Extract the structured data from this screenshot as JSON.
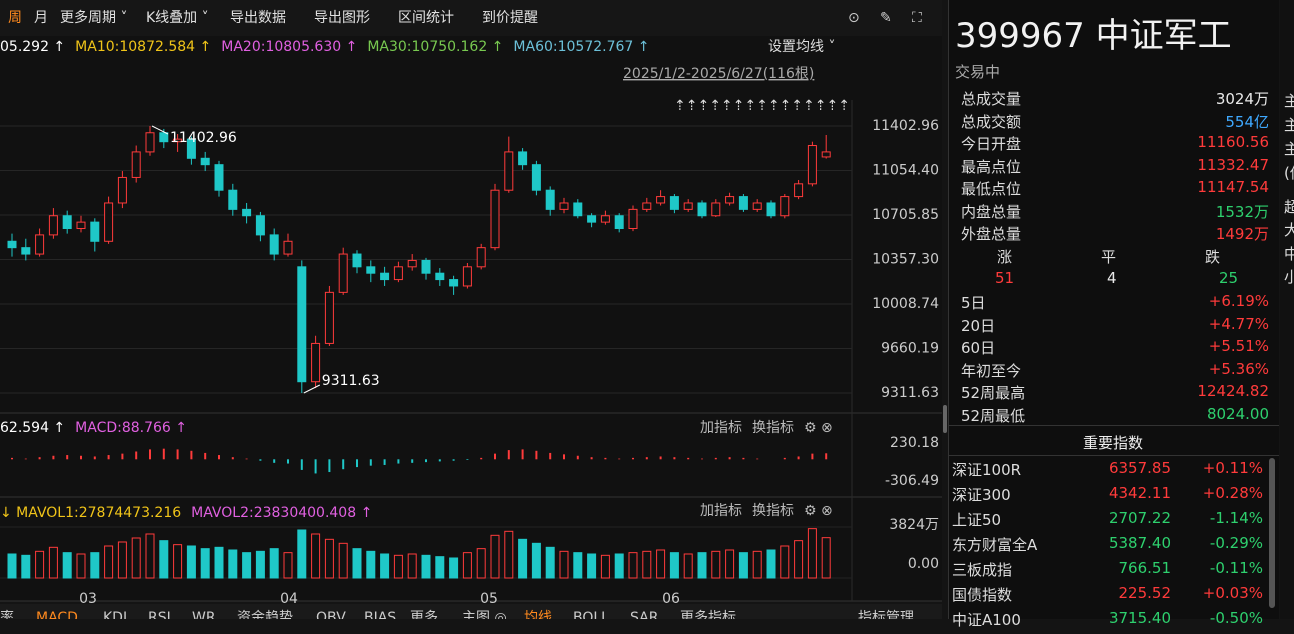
{
  "toolbar": {
    "items": [
      "周",
      "月",
      "更多周期 ˅",
      "K线叠加 ˅",
      "导出数据",
      "导出图形",
      "区间统计",
      "到价提醒"
    ],
    "active_color": "#ff8a1e",
    "icons": [
      "⊙",
      "✎",
      "⛶"
    ]
  },
  "main": {
    "legend": [
      {
        "text": "05.292 ↑",
        "color": "#ffffff"
      },
      {
        "text": "MA10:10872.584 ↑",
        "color": "#f0c419"
      },
      {
        "text": "MA20:10805.630 ↑",
        "color": "#e060e0"
      },
      {
        "text": "MA30:10750.162 ↑",
        "color": "#78c850"
      },
      {
        "text": "MA60:10572.767 ↑",
        "color": "#6cc0d8"
      }
    ],
    "settings": "设置均线 ˅",
    "range": "2025/1/2-2025/6/27(116根)",
    "arrows": "⇡⇡⇡⇡⇡⇡⇡⇡⇡⇡⇡⇡⇡⇡⇡",
    "high_label": "11402.96",
    "low_label": "9311.63",
    "ylim": [
      9311.63,
      11402.96
    ],
    "yticks": [
      11402.96,
      {
        "value": 11054.4,
        "label": "11054.40"
      },
      10705.85,
      {
        "value": 10357.3,
        "label": "10357.30"
      },
      10008.74,
      9660.19,
      9311.63
    ],
    "up_color": "#ff3b3b",
    "down_color": "#1fc8c8",
    "ohlc": [
      [
        10500,
        10560,
        10380,
        10450
      ],
      [
        10450,
        10520,
        10350,
        10400
      ],
      [
        10400,
        10600,
        10380,
        10550
      ],
      [
        10550,
        10760,
        10520,
        10700
      ],
      [
        10700,
        10740,
        10560,
        10600
      ],
      [
        10600,
        10700,
        10570,
        10650
      ],
      [
        10650,
        10680,
        10420,
        10500
      ],
      [
        10500,
        10850,
        10480,
        10800
      ],
      [
        10800,
        11050,
        10760,
        11000
      ],
      [
        11000,
        11250,
        10960,
        11200
      ],
      [
        11200,
        11402.96,
        11170,
        11350
      ],
      [
        11350,
        11380,
        11230,
        11280
      ],
      [
        11280,
        11340,
        11200,
        11300
      ],
      [
        11300,
        11320,
        11100,
        11150
      ],
      [
        11150,
        11200,
        11050,
        11100
      ],
      [
        11100,
        11130,
        10850,
        10900
      ],
      [
        10900,
        10950,
        10700,
        10750
      ],
      [
        10750,
        10800,
        10640,
        10700
      ],
      [
        10700,
        10730,
        10500,
        10550
      ],
      [
        10550,
        10600,
        10350,
        10400
      ],
      [
        10400,
        10560,
        10380,
        10500
      ],
      [
        10300,
        10350,
        9311.63,
        9400
      ],
      [
        9400,
        9760,
        9350,
        9700
      ],
      [
        9700,
        10150,
        9680,
        10100
      ],
      [
        10100,
        10450,
        10080,
        10400
      ],
      [
        10400,
        10430,
        10250,
        10300
      ],
      [
        10300,
        10350,
        10180,
        10250
      ],
      [
        10250,
        10300,
        10150,
        10200
      ],
      [
        10200,
        10340,
        10180,
        10300
      ],
      [
        10300,
        10400,
        10270,
        10350
      ],
      [
        10350,
        10370,
        10200,
        10250
      ],
      [
        10250,
        10290,
        10150,
        10200
      ],
      [
        10200,
        10230,
        10080,
        10150
      ],
      [
        10150,
        10330,
        10130,
        10300
      ],
      [
        10300,
        10480,
        10280,
        10450
      ],
      [
        10450,
        10950,
        10430,
        10900
      ],
      [
        10900,
        11320,
        10880,
        11200
      ],
      [
        11200,
        11230,
        11060,
        11100
      ],
      [
        11100,
        11130,
        10860,
        10900
      ],
      [
        10900,
        10930,
        10700,
        10750
      ],
      [
        10750,
        10840,
        10720,
        10800
      ],
      [
        10800,
        10830,
        10680,
        10700
      ],
      [
        10700,
        10720,
        10610,
        10650
      ],
      [
        10650,
        10740,
        10630,
        10700
      ],
      [
        10700,
        10720,
        10570,
        10600
      ],
      [
        10600,
        10780,
        10580,
        10750
      ],
      [
        10750,
        10840,
        10730,
        10800
      ],
      [
        10800,
        10900,
        10780,
        10850
      ],
      [
        10850,
        10870,
        10720,
        10750
      ],
      [
        10750,
        10830,
        10730,
        10800
      ],
      [
        10800,
        10820,
        10680,
        10700
      ],
      [
        10700,
        10830,
        10690,
        10800
      ],
      [
        10800,
        10880,
        10780,
        10850
      ],
      [
        10850,
        10870,
        10730,
        10750
      ],
      [
        10750,
        10830,
        10730,
        10800
      ],
      [
        10800,
        10820,
        10680,
        10700
      ],
      [
        10700,
        10870,
        10680,
        10850
      ],
      [
        10850,
        10980,
        10830,
        10950
      ],
      [
        10950,
        11280,
        10930,
        11250
      ],
      [
        11160.56,
        11332.47,
        11147.54,
        11200
      ]
    ]
  },
  "macd": {
    "legend": [
      {
        "text": "62.594 ↑",
        "color": "#ffffff"
      },
      {
        "text": "MACD:88.766 ↑",
        "color": "#e060e0"
      }
    ],
    "buttons": [
      "加指标",
      "换指标"
    ],
    "ylim": [
      -306.49,
      230.18
    ],
    "yticks": [
      230.18,
      -306.49
    ],
    "hist": [
      20,
      10,
      30,
      50,
      60,
      50,
      40,
      60,
      80,
      110,
      140,
      150,
      140,
      120,
      90,
      60,
      30,
      10,
      -20,
      -50,
      -60,
      -150,
      -200,
      -180,
      -140,
      -110,
      -90,
      -80,
      -60,
      -50,
      -40,
      -30,
      -20,
      -10,
      20,
      80,
      130,
      140,
      120,
      90,
      70,
      50,
      30,
      20,
      10,
      20,
      30,
      40,
      30,
      20,
      10,
      20,
      30,
      20,
      10,
      0,
      20,
      40,
      80,
      85
    ]
  },
  "volume": {
    "legend": [
      {
        "text": "↓ MAVOL1:27874473.216",
        "color": "#f0c419"
      },
      {
        "text": "MAVOL2:23830400.408 ↑",
        "color": "#e060e0"
      }
    ],
    "buttons": [
      "加指标",
      "换指标"
    ],
    "ylim": [
      0,
      3824
    ],
    "yticks": [
      {
        "value": 3824,
        "label": "3824万"
      },
      {
        "value": 0,
        "label": "0.00"
      }
    ],
    "values": [
      1800,
      1700,
      2000,
      2300,
      1900,
      1800,
      1900,
      2400,
      2700,
      3000,
      3300,
      2800,
      2500,
      2400,
      2200,
      2300,
      2100,
      1900,
      2000,
      2200,
      1900,
      3600,
      3300,
      2900,
      2600,
      2200,
      2000,
      1800,
      1700,
      1800,
      1700,
      1600,
      1500,
      1900,
      2200,
      3200,
      3500,
      2900,
      2600,
      2300,
      2000,
      1900,
      1800,
      1700,
      1800,
      1900,
      2000,
      2100,
      1900,
      1800,
      1900,
      2000,
      2100,
      1900,
      2000,
      2100,
      2400,
      2800,
      3700,
      3024
    ]
  },
  "months": [
    "03",
    "04",
    "05",
    "06"
  ],
  "tabs": [
    "率",
    "MACD",
    "KDJ",
    "RSI",
    "WR",
    "资金趋势",
    "OBV",
    "BIAS",
    "更多",
    "主图 ◎",
    "均线",
    "BOLL",
    "SAR",
    "更多指标",
    "指标管理"
  ],
  "quote": {
    "title": "399967 中证军工",
    "status": "交易中",
    "rows": [
      {
        "name": "总成交量",
        "value": "3024万",
        "color": "#e8e8e8"
      },
      {
        "name": "总成交额",
        "value": "554亿",
        "color": "#3fa9ff"
      },
      {
        "name": "今日开盘",
        "value": "11160.56",
        "color": "#ff3b3b"
      },
      {
        "name": "最高点位",
        "value": "11332.47",
        "color": "#ff3b3b"
      },
      {
        "name": "最低点位",
        "value": "11147.54",
        "color": "#ff3b3b"
      },
      {
        "name": "内盘总量",
        "value": "1532万",
        "color": "#2ed06e"
      },
      {
        "name": "外盘总量",
        "value": "1492万",
        "color": "#ff3b3b"
      }
    ],
    "breadth": [
      {
        "name": "涨",
        "value": "51",
        "color": "#ff3b3b"
      },
      {
        "name": "平",
        "value": "4",
        "color": "#e8e8e8"
      },
      {
        "name": "跌",
        "value": "25",
        "color": "#2ed06e"
      }
    ],
    "periods": [
      {
        "name": "5日",
        "value": "+6.19%",
        "color": "#ff3b3b"
      },
      {
        "name": "20日",
        "value": "+4.77%",
        "color": "#ff3b3b"
      },
      {
        "name": "60日",
        "value": "+5.51%",
        "color": "#ff3b3b"
      },
      {
        "name": "年初至今",
        "value": "+5.36%",
        "color": "#ff3b3b"
      },
      {
        "name": "52周最高",
        "value": "12424.82",
        "color": "#ff3b3b"
      },
      {
        "name": "52周最低",
        "value": "8024.00",
        "color": "#2ed06e"
      }
    ],
    "index_title": "重要指数",
    "indices": [
      {
        "name": "深证100R",
        "value": "6357.85",
        "change": "+0.11%",
        "color": "#ff3b3b"
      },
      {
        "name": "深证300",
        "value": "4342.11",
        "change": "+0.28%",
        "color": "#ff3b3b"
      },
      {
        "name": "上证50",
        "value": "2707.22",
        "change": "-1.14%",
        "color": "#2ed06e"
      },
      {
        "name": "东方财富全A",
        "value": "5387.40",
        "change": "-0.29%",
        "color": "#2ed06e"
      },
      {
        "name": "三板成指",
        "value": "766.51",
        "change": "-0.11%",
        "color": "#2ed06e"
      },
      {
        "name": "国债指数",
        "value": "225.52",
        "change": "+0.03%",
        "color": "#ff3b3b"
      },
      {
        "name": "中证A100",
        "value": "3715.40",
        "change": "-0.50%",
        "color": "#2ed06e"
      }
    ]
  },
  "side_chars": [
    "主",
    "主",
    "主",
    "(估",
    "超",
    "大",
    "中",
    "小"
  ]
}
